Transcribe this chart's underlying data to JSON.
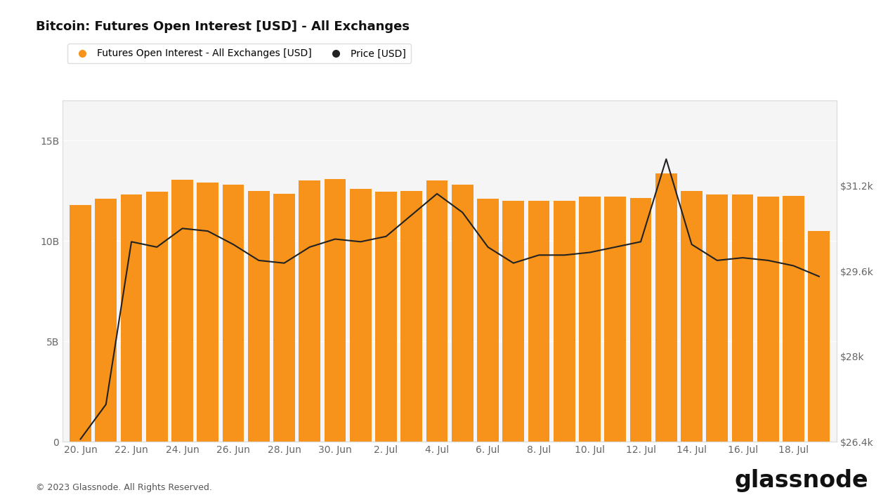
{
  "title": "Bitcoin: Futures Open Interest [USD] - All Exchanges",
  "bar_label": "Futures Open Interest - All Exchanges [USD]",
  "line_label": "Price [USD]",
  "bar_color": "#F7931A",
  "line_color": "#222222",
  "background_color": "#ffffff",
  "chart_bg_color": "#f5f5f5",
  "grid_color": "#ffffff",
  "border_color": "#dddddd",
  "text_color": "#333333",
  "tick_color": "#666666",
  "ylim_left": [
    0,
    17000000000
  ],
  "ylim_right": [
    26400,
    32800
  ],
  "yticks_left": [
    0,
    5000000000,
    10000000000,
    15000000000
  ],
  "ytick_labels_left": [
    "0",
    "5B",
    "10B",
    "15B"
  ],
  "yticks_right": [
    26400,
    28000,
    29600,
    31200
  ],
  "ytick_labels_right": [
    "$26.4k",
    "$28k",
    "$29.6k",
    "$31.2k"
  ],
  "footer": "© 2023 Glassnode. All Rights Reserved.",
  "oi_values": [
    11800000000,
    12100000000,
    12300000000,
    12450000000,
    13050000000,
    12900000000,
    12800000000,
    12500000000,
    12350000000,
    13000000000,
    13100000000,
    12600000000,
    12450000000,
    12500000000,
    13000000000,
    12800000000,
    12100000000,
    12000000000,
    12000000000,
    12000000000,
    12200000000,
    12200000000,
    12150000000,
    13350000000,
    12500000000,
    12300000000,
    12300000000,
    12200000000,
    12250000000,
    10500000000
  ],
  "price_values": [
    26450,
    27100,
    30150,
    30050,
    30400,
    30350,
    30100,
    29800,
    29750,
    30050,
    30200,
    30150,
    30250,
    30650,
    31050,
    30700,
    30050,
    29750,
    29900,
    29900,
    29950,
    30050,
    30150,
    31700,
    30100,
    29800,
    29850,
    29800,
    29700,
    29500
  ],
  "xtick_positions": [
    0,
    2,
    4,
    6,
    8,
    10,
    12,
    14,
    16,
    18,
    20,
    22,
    24,
    26,
    28
  ],
  "xtick_labels": [
    "20. Jun",
    "22. Jun",
    "24. Jun",
    "26. Jun",
    "28. Jun",
    "30. Jun",
    "2. Jul",
    "4. Jul",
    "6. Jul",
    "8. Jul",
    "10. Jul",
    "12. Jul",
    "14. Jul",
    "16. Jul",
    "18. Jul"
  ]
}
